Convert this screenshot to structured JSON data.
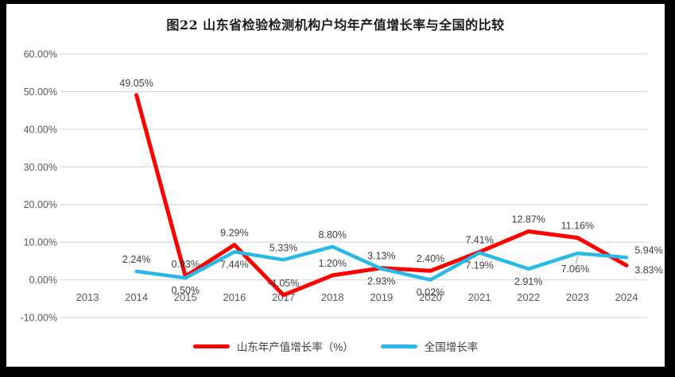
{
  "title": "图22 山东省检验检测机构户均年产值增长率与全国的比较",
  "chart_data": {
    "type": "line",
    "title": "图22 山东省检验检测机构户均年产值增长率与全国的比较",
    "categories": [
      "2013",
      "2014",
      "2015",
      "2016",
      "2017",
      "2018",
      "2019",
      "2020",
      "2021",
      "2022",
      "2023",
      "2024"
    ],
    "series": [
      {
        "name": "山东年产值增长率（%）",
        "color": "#FF0000",
        "start_index": 1,
        "values": [
          49.05,
          0.93,
          9.29,
          -4.05,
          1.2,
          3.13,
          2.4,
          7.41,
          12.87,
          11.16,
          3.83
        ],
        "labels": [
          "49.05%",
          "0.93%",
          "9.29%",
          "-4.05%",
          "1.20%",
          "3.13%",
          "2.40%",
          "7.41%",
          "12.87%",
          "11.16%",
          "3.83%"
        ],
        "label_sides": [
          "above",
          "above",
          "above",
          "above",
          "above",
          "above",
          "above",
          "above",
          "above",
          "above",
          "right-below"
        ]
      },
      {
        "name": "全国增长率",
        "color": "#29B9E8",
        "start_index": 1,
        "values": [
          2.24,
          0.5,
          7.44,
          5.33,
          8.8,
          2.93,
          0.02,
          7.19,
          2.91,
          7.06,
          5.94
        ],
        "labels": [
          "2.24%",
          "0.50%",
          "7.44%",
          "5.33%",
          "8.80%",
          "2.93%",
          "0.02%",
          "7.19%",
          "2.91%",
          "7.06%",
          "5.94%"
        ],
        "label_sides": [
          "above",
          "below",
          "below",
          "above",
          "above",
          "below",
          "below",
          "below",
          "below",
          "below-leader",
          "right-above"
        ]
      }
    ],
    "y_tick_labels": [
      "60.00%",
      "50.00%",
      "40.00%",
      "30.00%",
      "20.00%",
      "10.00%",
      "0.00%",
      "-10.00%"
    ],
    "ylim": [
      -10,
      60
    ],
    "ytick_step": 10,
    "grid": true,
    "legend_position": "bottom",
    "colors": {
      "gridline": "#D9D9D9",
      "axis_text": "#595959",
      "data_label_text": "#404040",
      "leader_line": "#A6A6A6",
      "frame": "#000000",
      "background": "#FFFFFF"
    }
  }
}
